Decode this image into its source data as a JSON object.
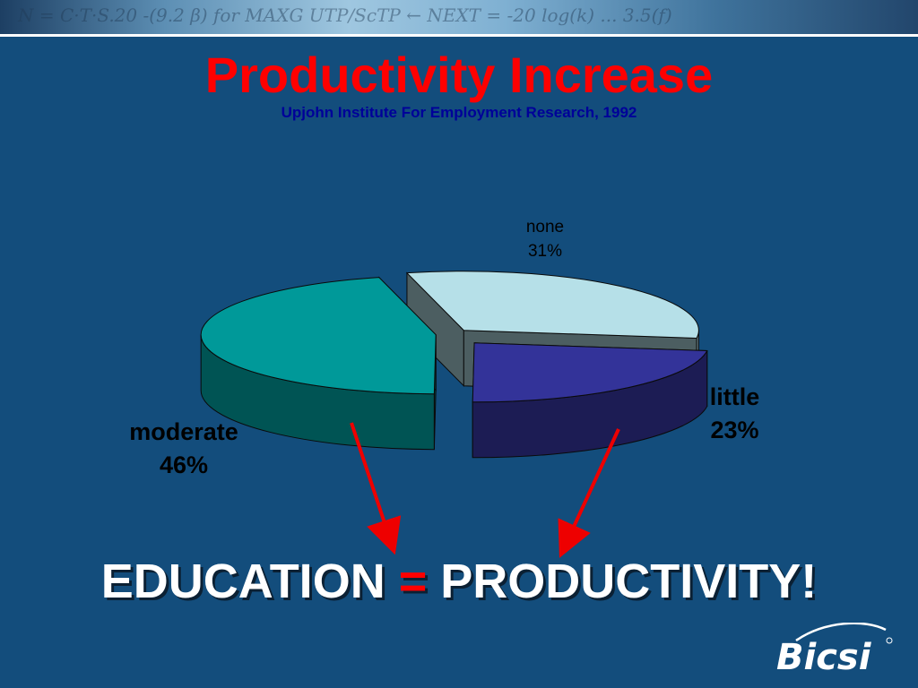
{
  "title": "Productivity Increase",
  "subtitle": "Upjohn Institute For Employment Research, 1992",
  "headline": {
    "left": "EDUCATION",
    "eq": "=",
    "right": "PRODUCTIVITY!"
  },
  "banner_text": "N = C·T·S.20 -(9.2 β) for MAXG UTP/ScTP  ← NEXT = -20 log(k)  ... 3.5(f)",
  "logo_text": "Bicsi",
  "colors": {
    "background": "#134d7c",
    "title": "#ff0000",
    "subtitle": "#000099",
    "arrow": "#ee0000"
  },
  "chart_data": {
    "type": "pie",
    "style": "3d-exploded",
    "categories": [
      "none",
      "little",
      "moderate"
    ],
    "values": [
      31,
      23,
      46
    ],
    "value_labels": [
      "31%",
      "23%",
      "46%"
    ],
    "colors": [
      "#b6e0e8",
      "#333399",
      "#009999"
    ]
  }
}
